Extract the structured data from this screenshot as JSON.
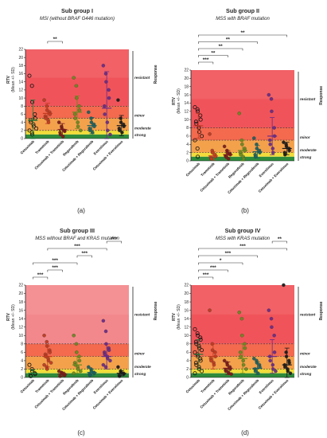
{
  "figure": {
    "width": 411,
    "height": 550
  },
  "chart_data": [
    {
      "panel_label": "(a)",
      "title": "Sub group I",
      "subtitle": "MSI (without BRAF G446 mutation)",
      "type": "scatter",
      "ylabel_line1": "RTV",
      "ylabel_line2": "(Mean +/- SD)",
      "ylim": [
        0,
        22
      ],
      "yticks": [
        0,
        2,
        4,
        6,
        8,
        10,
        12,
        14,
        16,
        18,
        20,
        22
      ],
      "thresholds": {
        "strong": 1,
        "moderate": 2,
        "minor": 5,
        "resistant": 8
      },
      "band_labels": {
        "resistant": "resistant",
        "minor": "minor",
        "moderate": "moderate",
        "strong": "strong",
        "response": "Response"
      },
      "categories": [
        "Cetuximab",
        "Trametinib",
        "Cetuximab + Trametinib",
        "Regorafenib",
        "Cetuximab + Regorafenib",
        "Everolimus",
        "Cetuximab + Everolimus"
      ],
      "category_colors": [
        "#1e7a3c",
        "#c03a20",
        "#7a1a1a",
        "#6a8a20",
        "#1a6060",
        "#6a2a8a",
        "#1a1a1a"
      ],
      "means": [
        4.5,
        6.2,
        2.2,
        6.5,
        3.2,
        7.5,
        3.2
      ],
      "sds": [
        5.0,
        2.5,
        1.5,
        4.0,
        2.0,
        9.0,
        2.5
      ],
      "points": [
        [
          15.5,
          13,
          9,
          6,
          5,
          4.5,
          4,
          3.5,
          3,
          2.5,
          2,
          1.5,
          1
        ],
        [
          9.5,
          8,
          7,
          6.5,
          6,
          5.5,
          5,
          4.5,
          4
        ],
        [
          4,
          3,
          2.5,
          2,
          1.8,
          1.5,
          1,
          0.5
        ],
        [
          15,
          13,
          10,
          8,
          7,
          6,
          5,
          4,
          3,
          2
        ],
        [
          6.5,
          5,
          4,
          3.5,
          3,
          2.5,
          2,
          1.5
        ],
        [
          18,
          16,
          14,
          12,
          10,
          8,
          6,
          4,
          2,
          1
        ],
        [
          9.5,
          5,
          4,
          3.5,
          3,
          2.5,
          2,
          1.5
        ]
      ],
      "open_markers": [
        true,
        false,
        false,
        false,
        false,
        false,
        false
      ],
      "significance": [
        {
          "from": 1,
          "to": 2,
          "label": "**"
        }
      ]
    },
    {
      "panel_label": "(b)",
      "title": "Sub group II",
      "subtitle": "MSS with BRAF mutation",
      "type": "scatter",
      "ylabel_line1": "RTV",
      "ylabel_line2": "(Mean +/- SD)",
      "ylim": [
        0,
        22
      ],
      "yticks": [
        0,
        2,
        4,
        6,
        8,
        10,
        12,
        14,
        16,
        18,
        20,
        22
      ],
      "thresholds": {
        "strong": 1,
        "moderate": 2,
        "minor": 5,
        "resistant": 8
      },
      "band_labels": {
        "resistant": "resistant",
        "minor": "minor",
        "moderate": "moderate",
        "strong": "strong",
        "response": "Response"
      },
      "categories": [
        "Cetuximab",
        "Trametinib",
        "Cetuximab + Trametinib",
        "Regorafenib",
        "Cetuximab + Regorafenib",
        "Everolimus",
        "Cetuximab + Everolimus"
      ],
      "category_colors": [
        "#c03a20",
        "#c03a20",
        "#7a1a1a",
        "#6a8a20",
        "#1a6060",
        "#6a2a8a",
        "#1a1a1a"
      ],
      "means": [
        8.5,
        1.2,
        1.5,
        2.5,
        2.2,
        6.0,
        3.0
      ],
      "sds": [
        3.0,
        1.0,
        1.0,
        2.5,
        1.5,
        4.5,
        1.5
      ],
      "points": [
        [
          13,
          12.5,
          12,
          11,
          10,
          9.5,
          9,
          8,
          7,
          6,
          5,
          3,
          1
        ],
        [
          6.5,
          2.5,
          2,
          1.5,
          1,
          0.8,
          0.5
        ],
        [
          3.5,
          2.5,
          2,
          1.8,
          1.5,
          1.2,
          1,
          0.5
        ],
        [
          11.5,
          5,
          4,
          3,
          2.5,
          2,
          1.5,
          1,
          0.5
        ],
        [
          5.5,
          4,
          3,
          2.5,
          2,
          1.5,
          1
        ],
        [
          16,
          15,
          12,
          8,
          6,
          5,
          4,
          3,
          2
        ],
        [
          4.5,
          4,
          3.5,
          3,
          2.5,
          2,
          1.5
        ]
      ],
      "open_markers": [
        true,
        false,
        false,
        false,
        false,
        false,
        false
      ],
      "significance": [
        {
          "from": 0,
          "to": 1,
          "label": "***"
        },
        {
          "from": 0,
          "to": 2,
          "label": "**"
        },
        {
          "from": 0,
          "to": 3,
          "label": "**"
        },
        {
          "from": 0,
          "to": 4,
          "label": "**"
        },
        {
          "from": 0,
          "to": 6,
          "label": "**"
        }
      ]
    },
    {
      "panel_label": "(c)",
      "title": "Sub group III",
      "subtitle": "MSS without BRAF  and  KRAS mutation",
      "type": "scatter",
      "ylabel_line1": "RTV",
      "ylabel_line2": "(Mean +/- SD)",
      "ylim": [
        0,
        22
      ],
      "yticks": [
        0,
        2,
        4,
        6,
        8,
        10,
        12,
        14,
        16,
        18,
        20,
        22
      ],
      "thresholds": {
        "strong": 1,
        "moderate": 2,
        "minor": 5,
        "resistant": 8
      },
      "band_labels": {
        "resistant": "resistant",
        "minor": "minor",
        "moderate": "moderate",
        "strong": "strong",
        "response": "Response"
      },
      "categories": [
        "Cetuximab",
        "Trametinib",
        "Cetuximab + Trametinib",
        "Regorafenib",
        "Cetuximab + Regorafenib",
        "Everolimus",
        "Cetuximab + Everolimus"
      ],
      "category_colors": [
        "#1e7a3c",
        "#c03a20",
        "#7a1a1a",
        "#6a8a20",
        "#1a6060",
        "#6a2a8a",
        "#1a1a1a"
      ],
      "means": [
        1.0,
        5.0,
        0.8,
        3.0,
        1.2,
        5.0,
        1.0
      ],
      "sds": [
        0.8,
        2.5,
        0.5,
        2.0,
        0.8,
        3.0,
        0.6
      ],
      "points": [
        [
          3,
          2,
          1.5,
          1,
          0.8,
          0.5,
          0.3
        ],
        [
          10,
          8.5,
          7.5,
          6.5,
          6,
          5.5,
          5,
          4.5,
          4,
          3.5,
          3,
          2.5,
          2
        ],
        [
          1.5,
          1.2,
          1,
          0.8,
          0.5,
          0.3
        ],
        [
          10,
          8,
          6,
          5,
          4,
          3.5,
          3,
          2.5,
          2,
          1.5,
          1
        ],
        [
          2.5,
          2,
          1.5,
          1.2,
          1,
          0.8,
          0.5
        ],
        [
          13.5,
          11,
          8,
          7,
          6.5,
          6,
          5.5,
          5,
          4.5,
          4,
          3,
          2.5
        ],
        [
          2.5,
          1.5,
          1.2,
          1,
          0.8,
          0.5,
          0.3
        ]
      ],
      "open_markers": [
        true,
        false,
        false,
        false,
        false,
        false,
        false
      ],
      "significance": [
        {
          "from": 0,
          "to": 1,
          "label": "***"
        },
        {
          "from": 1,
          "to": 2,
          "label": "***"
        },
        {
          "from": 0,
          "to": 3,
          "label": "***"
        },
        {
          "from": 3,
          "to": 4,
          "label": "***"
        },
        {
          "from": 1,
          "to": 5,
          "label": "***"
        },
        {
          "from": 5,
          "to": 6,
          "label": "***"
        }
      ]
    },
    {
      "panel_label": "(d)",
      "title": "Sub group IV",
      "subtitle": "MSS with KRAS mutation",
      "type": "scatter",
      "ylabel_line1": "RTV",
      "ylabel_line2": "(Mean +/- SD)",
      "ylim": [
        0,
        22
      ],
      "yticks": [
        0,
        2,
        4,
        6,
        8,
        10,
        12,
        14,
        16,
        18,
        20,
        22
      ],
      "thresholds": {
        "strong": 1,
        "moderate": 2,
        "minor": 5,
        "resistant": 8
      },
      "band_labels": {
        "resistant": "resistant",
        "minor": "minor",
        "moderate": "moderate",
        "strong": "strong",
        "response": "Response"
      },
      "categories": [
        "Cetuximab",
        "Trametinib",
        "Cetuximab + Trametinib",
        "Regorafenib",
        "Cetuximab + Regorafenib",
        "Everolimus",
        "Cetuximab + Everolimus"
      ],
      "category_colors": [
        "#1e7a3c",
        "#c03a20",
        "#7a1a1a",
        "#6a8a20",
        "#1a6060",
        "#6a2a8a",
        "#1a1a1a"
      ],
      "means": [
        5.5,
        5.0,
        2.2,
        4.5,
        2.2,
        5.0,
        3.0
      ],
      "sds": [
        3.5,
        3.0,
        1.5,
        3.5,
        1.5,
        4.0,
        4.0
      ],
      "points": [
        [
          11.5,
          10.5,
          10,
          9.5,
          9,
          8.5,
          8,
          7.5,
          7,
          6.5,
          6,
          5.5,
          5,
          4.5,
          4,
          3.5,
          3,
          2.5,
          2,
          1.5,
          1
        ],
        [
          16,
          8,
          6.5,
          6,
          5,
          4.5,
          4,
          3.5,
          3
        ],
        [
          4,
          3.5,
          3,
          2.5,
          2,
          1.8,
          1.5,
          1.2,
          1,
          0.8
        ],
        [
          15.5,
          14,
          10,
          8,
          7,
          6,
          5,
          4,
          3,
          2
        ],
        [
          4.5,
          4,
          3.5,
          3,
          2.5,
          2,
          1.5,
          1
        ],
        [
          16,
          14,
          12,
          10,
          6,
          5,
          4,
          3,
          2,
          1.5
        ],
        [
          22,
          6,
          5,
          4,
          3.5,
          3,
          2.5,
          2,
          1.5,
          1
        ]
      ],
      "open_markers": [
        true,
        false,
        false,
        false,
        false,
        false,
        false
      ],
      "significance": [
        {
          "from": 0,
          "to": 1,
          "label": "***"
        },
        {
          "from": 0,
          "to": 2,
          "label": "***"
        },
        {
          "from": 0,
          "to": 3,
          "label": "*"
        },
        {
          "from": 0,
          "to": 4,
          "label": "***"
        },
        {
          "from": 0,
          "to": 6,
          "label": "***"
        },
        {
          "from": 5,
          "to": 6,
          "label": "**"
        }
      ]
    }
  ]
}
